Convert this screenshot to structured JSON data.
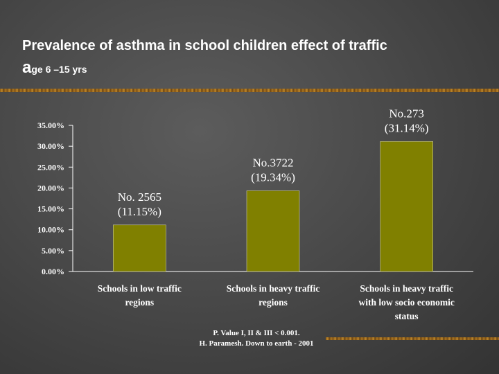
{
  "title": {
    "line1": "Prevalence of asthma in school children effect of traffic",
    "line2_first_letter": "a",
    "line2_rest": "ge 6 –15 yrs"
  },
  "chart_data": {
    "type": "bar",
    "categories": [
      [
        "Schools in low traffic",
        "regions"
      ],
      [
        "Schools in heavy traffic",
        "regions"
      ],
      [
        "Schools in heavy traffic",
        "with low socio economic",
        "status"
      ]
    ],
    "values": [
      11.15,
      19.34,
      31.14
    ],
    "data_labels": [
      [
        "No. 2565",
        "(11.15%)"
      ],
      [
        "No.3722",
        "(19.34%)"
      ],
      [
        "No.273",
        "(31.14%)"
      ]
    ],
    "yticks": [
      "0.00%",
      "5.00%",
      "10.00%",
      "15.00%",
      "20.00%",
      "25.00%",
      "30.00%",
      "35.00%"
    ],
    "ylim": [
      0,
      35
    ],
    "grid": false,
    "legend": "none",
    "bar_color": "#808000",
    "text_color": "#ffffff"
  },
  "footnote": {
    "line1": "P. Value I, II & III < 0.001.",
    "line2": "H. Paramesh. Down to earth - 2001"
  }
}
